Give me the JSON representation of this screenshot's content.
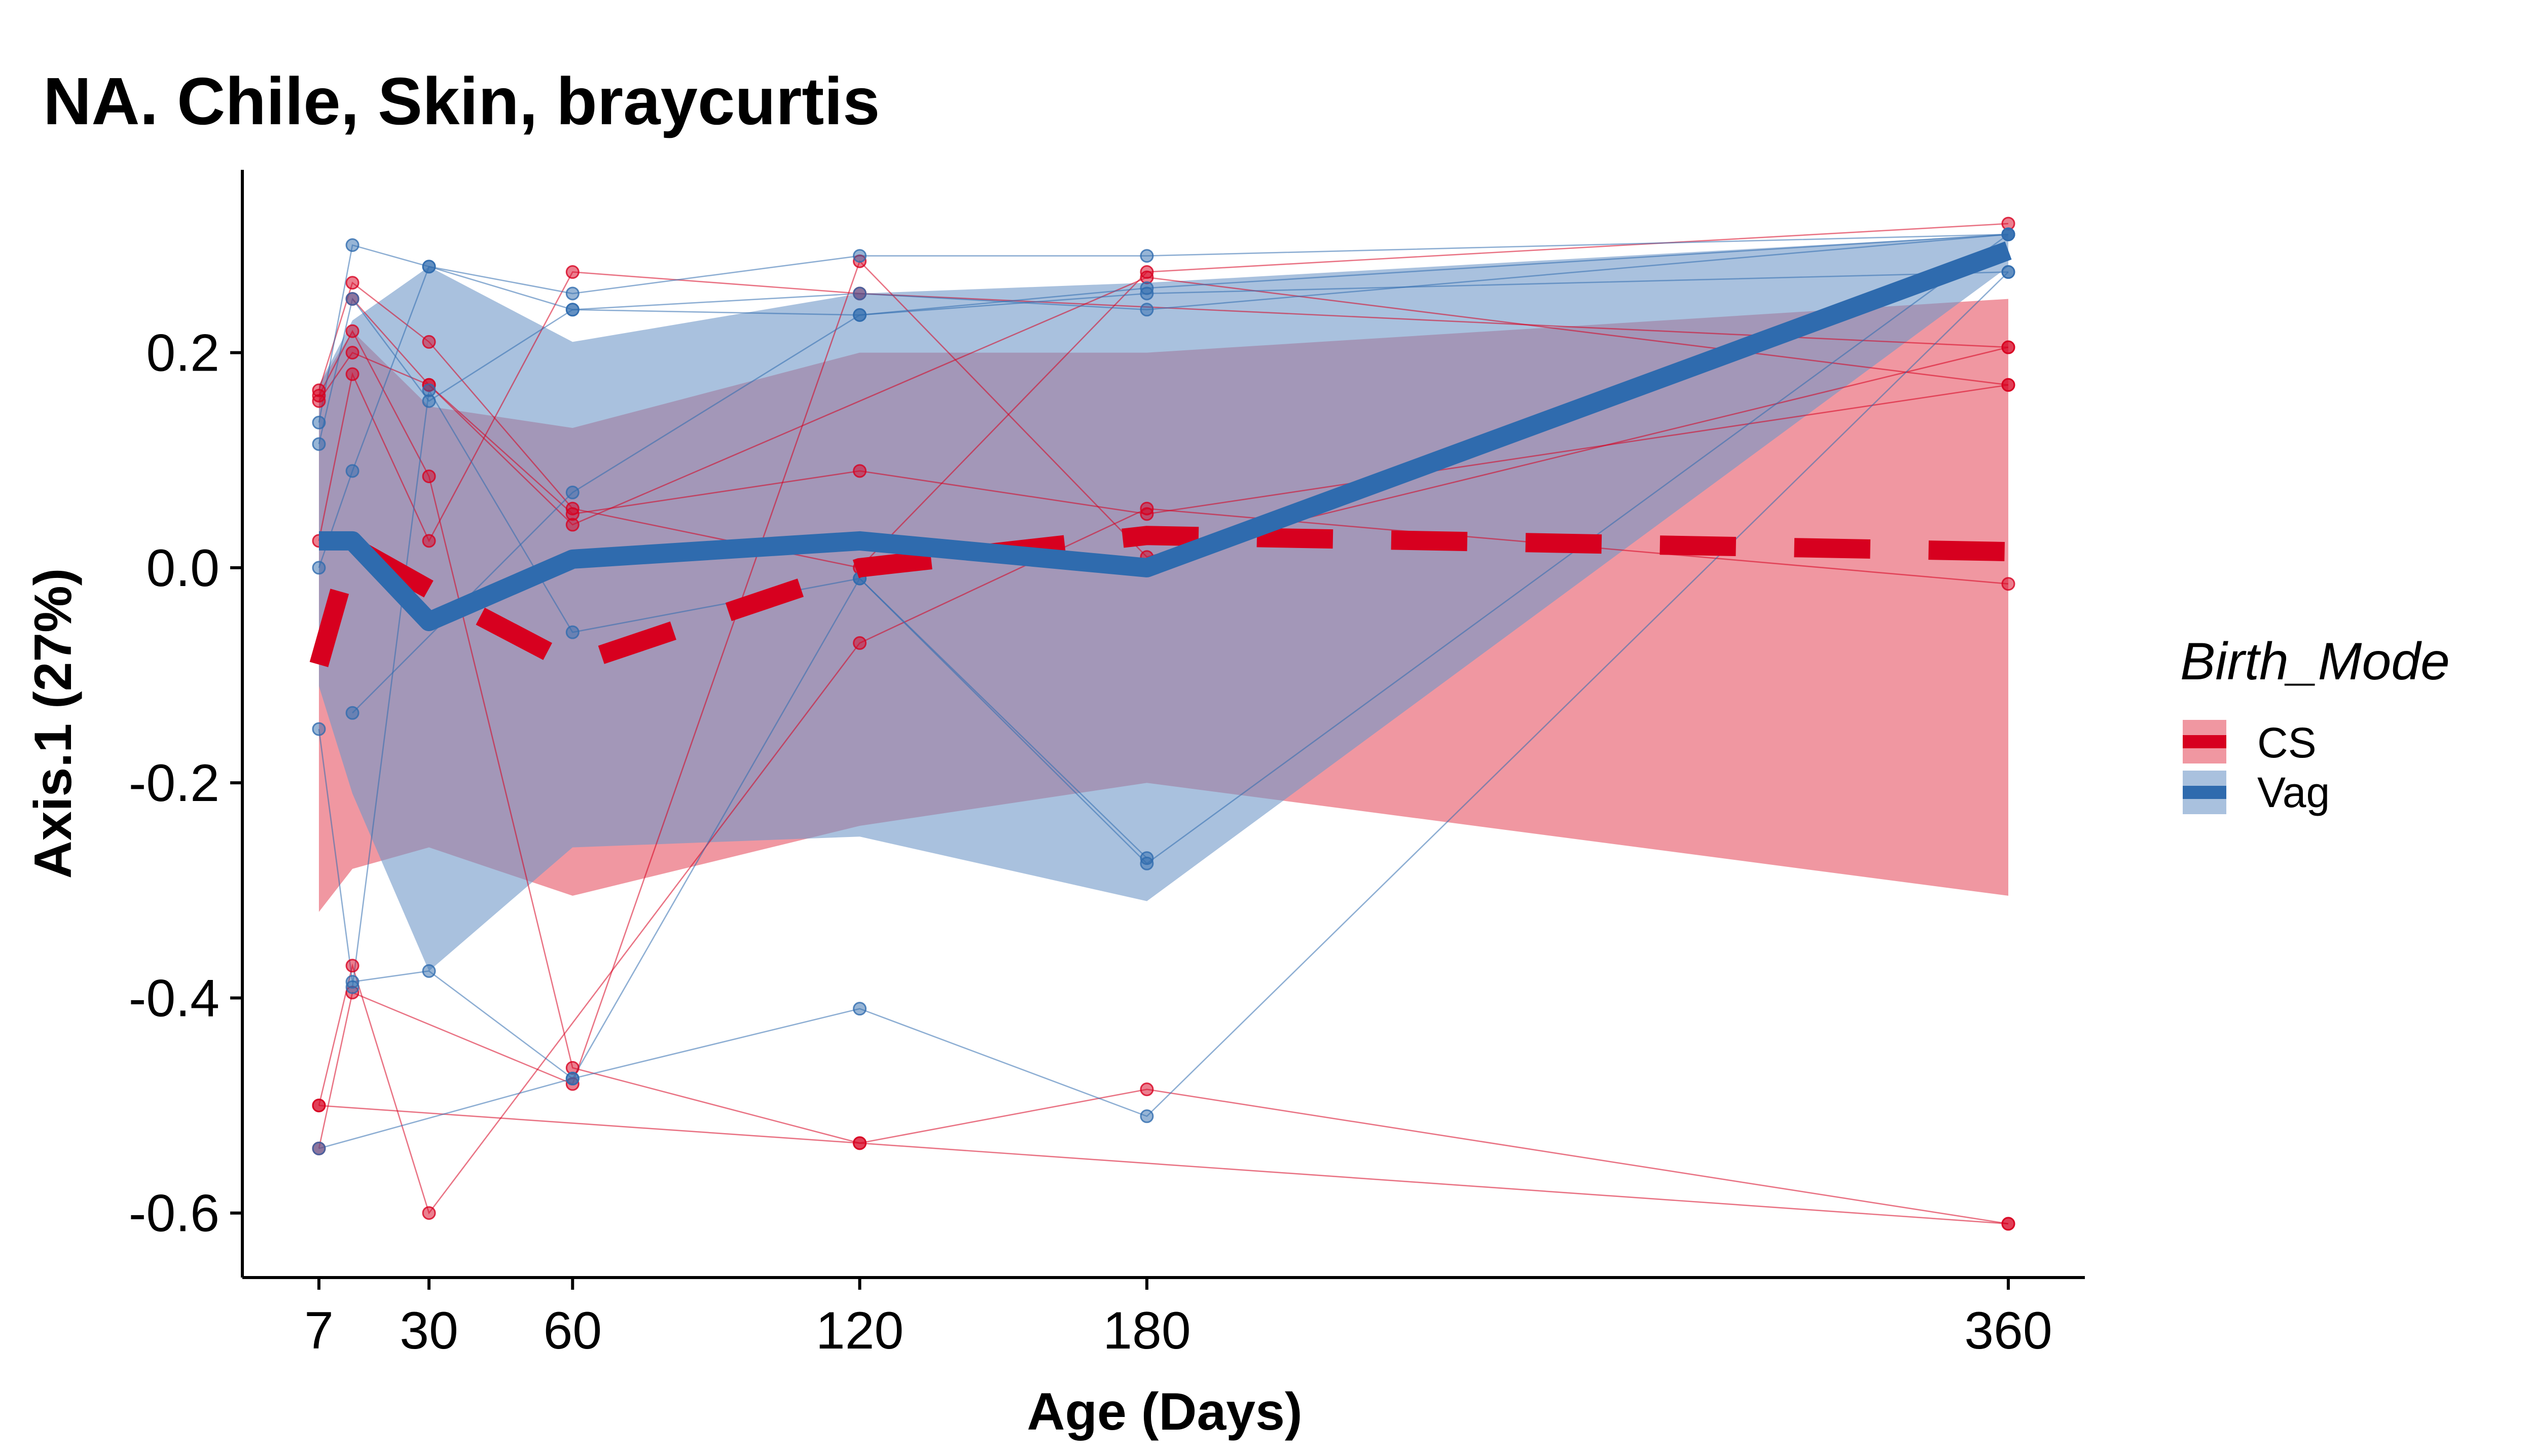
{
  "colors": {
    "CS": "#d7001f",
    "CS_ribbon": "#e8606e",
    "Vag": "#2f6bae",
    "Vag_ribbon": "#6f97c8"
  },
  "chart_data": {
    "type": "line",
    "title": "NA. Chile, Skin, braycurtis",
    "xlabel": "Age (Days)",
    "ylabel": "Axis.1 (27%)",
    "xlim": [
      -9,
      376
    ],
    "ylim": [
      -0.66,
      0.37
    ],
    "x_ticks": [
      7,
      30,
      60,
      120,
      180,
      360
    ],
    "x_tick_labels": [
      "7",
      "30",
      "60",
      "120",
      "180",
      "360"
    ],
    "y_ticks": [
      -0.6,
      -0.4,
      -0.2,
      0.0,
      0.2
    ],
    "y_tick_labels": [
      "-0.6",
      "-0.4",
      "-0.2",
      "0.0",
      "0.2"
    ],
    "legend": {
      "title": "Birth_Mode",
      "position": "right",
      "entries": [
        "CS",
        "Vag"
      ]
    },
    "series": [
      {
        "name": "CS",
        "linestyle": "dashed",
        "mean": [
          [
            7,
            -0.09
          ],
          [
            14,
            0.02
          ],
          [
            30,
            -0.02
          ],
          [
            60,
            -0.09
          ],
          [
            120,
            0.0
          ],
          [
            180,
            0.03
          ],
          [
            360,
            0.015
          ]
        ],
        "ribbon_upper": [
          [
            7,
            0.17
          ],
          [
            14,
            0.22
          ],
          [
            30,
            0.15
          ],
          [
            60,
            0.13
          ],
          [
            120,
            0.2
          ],
          [
            180,
            0.2
          ],
          [
            360,
            0.25
          ]
        ],
        "ribbon_lower": [
          [
            7,
            -0.32
          ],
          [
            14,
            -0.28
          ],
          [
            30,
            -0.26
          ],
          [
            60,
            -0.305
          ],
          [
            120,
            -0.24
          ],
          [
            180,
            -0.2
          ],
          [
            360,
            -0.305
          ]
        ]
      },
      {
        "name": "Vag",
        "linestyle": "solid",
        "mean": [
          [
            7,
            0.025
          ],
          [
            14,
            0.025
          ],
          [
            30,
            -0.05
          ],
          [
            60,
            0.008
          ],
          [
            120,
            0.025
          ],
          [
            180,
            0.0
          ],
          [
            360,
            0.295
          ]
        ],
        "ribbon_upper": [
          [
            7,
            0.17
          ],
          [
            14,
            0.23
          ],
          [
            30,
            0.28
          ],
          [
            60,
            0.21
          ],
          [
            120,
            0.255
          ],
          [
            180,
            0.265
          ],
          [
            360,
            0.31
          ]
        ],
        "ribbon_lower": [
          [
            7,
            -0.11
          ],
          [
            14,
            -0.21
          ],
          [
            30,
            -0.375
          ],
          [
            60,
            -0.26
          ],
          [
            120,
            -0.25
          ],
          [
            180,
            -0.31
          ],
          [
            360,
            0.28
          ]
        ]
      }
    ],
    "subjects": [
      {
        "group": "CS",
        "points": [
          [
            7,
            0.165
          ],
          [
            14,
            0.265
          ],
          [
            30,
            0.21
          ],
          [
            60,
            0.055
          ],
          [
            120,
            0.0
          ],
          [
            180,
            0.275
          ],
          [
            360,
            0.32
          ]
        ]
      },
      {
        "group": "CS",
        "points": [
          [
            7,
            0.155
          ],
          [
            14,
            0.2
          ],
          [
            30,
            0.17
          ],
          [
            60,
            0.04
          ],
          [
            180,
            0.27
          ],
          [
            360,
            0.17
          ]
        ]
      },
      {
        "group": "CS",
        "points": [
          [
            7,
            0.025
          ],
          [
            14,
            0.18
          ],
          [
            30,
            0.025
          ],
          [
            60,
            0.275
          ],
          [
            120,
            0.255
          ],
          [
            360,
            0.205
          ]
        ]
      },
      {
        "group": "CS",
        "points": [
          [
            7,
            -0.5
          ],
          [
            14,
            -0.37
          ],
          [
            30,
            -0.6
          ],
          [
            120,
            -0.07
          ],
          [
            180,
            0.055
          ],
          [
            360,
            -0.015
          ]
        ]
      },
      {
        "group": "CS",
        "points": [
          [
            7,
            -0.54
          ],
          [
            14,
            -0.395
          ],
          [
            60,
            -0.48
          ],
          [
            120,
            0.285
          ],
          [
            180,
            0.01
          ],
          [
            360,
            0.205
          ]
        ]
      },
      {
        "group": "CS",
        "points": [
          [
            7,
            0.16
          ],
          [
            14,
            0.22
          ],
          [
            30,
            0.085
          ],
          [
            60,
            -0.465
          ],
          [
            120,
            -0.535
          ],
          [
            180,
            -0.485
          ],
          [
            360,
            -0.61
          ]
        ]
      },
      {
        "group": "CS",
        "points": [
          [
            7,
            -0.5
          ],
          [
            120,
            -0.535
          ],
          [
            360,
            -0.61
          ]
        ]
      },
      {
        "group": "CS",
        "points": [
          [
            14,
            0.25
          ],
          [
            30,
            0.17
          ],
          [
            60,
            0.05
          ],
          [
            120,
            0.09
          ],
          [
            180,
            0.05
          ],
          [
            360,
            0.17
          ]
        ]
      },
      {
        "group": "Vag",
        "points": [
          [
            7,
            0.135
          ],
          [
            14,
            0.3
          ],
          [
            30,
            0.28
          ],
          [
            60,
            0.255
          ],
          [
            120,
            0.29
          ],
          [
            180,
            0.29
          ],
          [
            360,
            0.31
          ]
        ]
      },
      {
        "group": "Vag",
        "points": [
          [
            7,
            0.115
          ],
          [
            14,
            0.25
          ],
          [
            30,
            0.155
          ],
          [
            60,
            0.24
          ],
          [
            120,
            0.235
          ],
          [
            180,
            0.255
          ],
          [
            360,
            0.275
          ]
        ]
      },
      {
        "group": "Vag",
        "points": [
          [
            7,
            0.0
          ],
          [
            14,
            0.09
          ],
          [
            30,
            0.28
          ],
          [
            60,
            0.24
          ],
          [
            120,
            0.255
          ],
          [
            180,
            0.24
          ],
          [
            360,
            0.31
          ]
        ]
      },
      {
        "group": "Vag",
        "points": [
          [
            7,
            -0.15
          ],
          [
            14,
            -0.385
          ],
          [
            30,
            -0.375
          ],
          [
            60,
            -0.475
          ],
          [
            120,
            -0.41
          ],
          [
            180,
            -0.51
          ],
          [
            360,
            0.275
          ]
        ]
      },
      {
        "group": "Vag",
        "points": [
          [
            7,
            -0.54
          ],
          [
            60,
            -0.475
          ],
          [
            120,
            -0.01
          ],
          [
            180,
            -0.275
          ],
          [
            360,
            0.31
          ]
        ]
      },
      {
        "group": "Vag",
        "points": [
          [
            14,
            -0.135
          ],
          [
            60,
            0.07
          ],
          [
            120,
            0.235
          ],
          [
            180,
            0.26
          ],
          [
            360,
            0.31
          ]
        ]
      },
      {
        "group": "Vag",
        "points": [
          [
            14,
            -0.39
          ],
          [
            30,
            0.165
          ],
          [
            60,
            -0.06
          ],
          [
            120,
            -0.01
          ],
          [
            180,
            -0.27
          ]
        ]
      }
    ]
  }
}
